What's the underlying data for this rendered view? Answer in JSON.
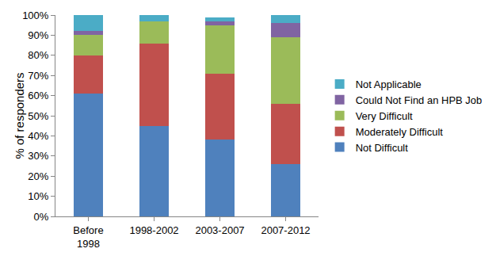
{
  "chart_data": {
    "type": "bar",
    "stacked": true,
    "categories": [
      "Before 1998",
      "1998-2002",
      "2003-2007",
      "2007-2012"
    ],
    "y_label": "% of responders",
    "series": [
      {
        "name": "Not Difficult",
        "color": "#4f81bd",
        "values": [
          61,
          45,
          38,
          26
        ]
      },
      {
        "name": "Moderately Difficult",
        "color": "#c0504d",
        "values": [
          19,
          41,
          33,
          30
        ]
      },
      {
        "name": "Very Difficult",
        "color": "#9bbb59",
        "values": [
          10,
          11,
          24,
          33
        ]
      },
      {
        "name": "Could Not Find an HPB Job",
        "color": "#8064a2",
        "values": [
          2,
          0,
          2,
          7
        ]
      },
      {
        "name": "Not Applicable",
        "color": "#4bacc6",
        "values": [
          8,
          3,
          2,
          4
        ]
      }
    ],
    "ylim": [
      0,
      100
    ],
    "yticks": [
      {
        "value": 0,
        "label": "0%"
      },
      {
        "value": 10,
        "label": "10%"
      },
      {
        "value": 20,
        "label": "20%"
      },
      {
        "value": 30,
        "label": "30%"
      },
      {
        "value": 40,
        "label": "40%"
      },
      {
        "value": 50,
        "label": "50%"
      },
      {
        "value": 60,
        "label": "60%"
      },
      {
        "value": 70,
        "label": "70%"
      },
      {
        "value": 80,
        "label": "80%"
      },
      {
        "value": 90,
        "label": "90%"
      },
      {
        "value": 100,
        "label": "100%"
      }
    ],
    "grid": false,
    "legend": "right"
  }
}
